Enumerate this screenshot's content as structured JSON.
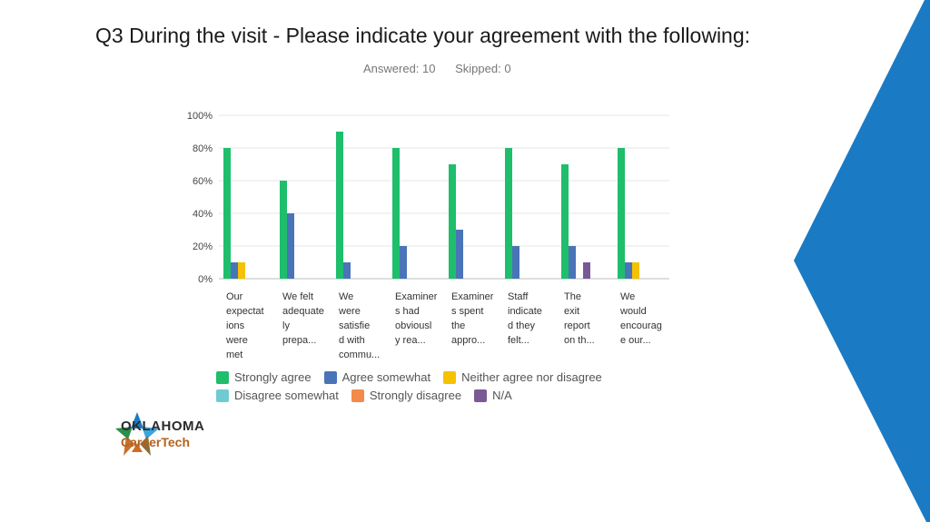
{
  "slide": {
    "title": "Q3 During the visit - Please indicate your agreement with the following:",
    "answered": "Answered: 10",
    "skipped": "Skipped: 0"
  },
  "logo": {
    "line1": "OKLAHOMA",
    "line2": "CareerTech"
  },
  "colors": {
    "accent_blue": "#1a7ac4",
    "strongly_agree": "#1fbe6c",
    "agree_somewhat": "#4a74b8",
    "neither": "#f5c200",
    "disagree_somewhat": "#6fcbd2",
    "strongly_disagree": "#f28a4a",
    "na": "#7a5a96"
  },
  "chart_data": {
    "type": "bar",
    "title": "",
    "xlabel": "",
    "ylabel": "",
    "ylim": [
      0,
      100
    ],
    "y_ticks": [
      "0%",
      "20%",
      "40%",
      "60%",
      "80%",
      "100%"
    ],
    "grid": true,
    "legend_position": "bottom",
    "categories": [
      [
        "Our",
        "expectat",
        "ions",
        "were",
        "met"
      ],
      [
        "We felt",
        "adequate",
        "ly",
        "prepa..."
      ],
      [
        "We",
        "were",
        "satisfie",
        "d with",
        "commu..."
      ],
      [
        "Examiner",
        "s had",
        "obviousl",
        "y rea..."
      ],
      [
        "Examiner",
        "s spent",
        "the",
        "appro..."
      ],
      [
        "Staff",
        "indicate",
        "d they",
        "felt..."
      ],
      [
        "The",
        "exit",
        "report",
        "on th..."
      ],
      [
        "We",
        "would",
        "encourag",
        "e our..."
      ]
    ],
    "series": [
      {
        "name": "Strongly agree",
        "color": "#1fbe6c",
        "values": [
          80,
          60,
          90,
          80,
          70,
          80,
          70,
          80
        ]
      },
      {
        "name": "Agree somewhat",
        "color": "#4a74b8",
        "values": [
          10,
          40,
          10,
          20,
          30,
          20,
          20,
          10
        ]
      },
      {
        "name": "Neither agree nor disagree",
        "color": "#f5c200",
        "values": [
          10,
          0,
          0,
          0,
          0,
          0,
          0,
          10
        ]
      },
      {
        "name": "Disagree somewhat",
        "color": "#6fcbd2",
        "values": [
          0,
          0,
          0,
          0,
          0,
          0,
          0,
          0
        ]
      },
      {
        "name": "Strongly disagree",
        "color": "#f28a4a",
        "values": [
          0,
          0,
          0,
          0,
          0,
          0,
          0,
          0
        ]
      },
      {
        "name": "N/A",
        "color": "#7a5a96",
        "values": [
          0,
          0,
          0,
          0,
          0,
          0,
          10,
          0
        ]
      }
    ]
  }
}
